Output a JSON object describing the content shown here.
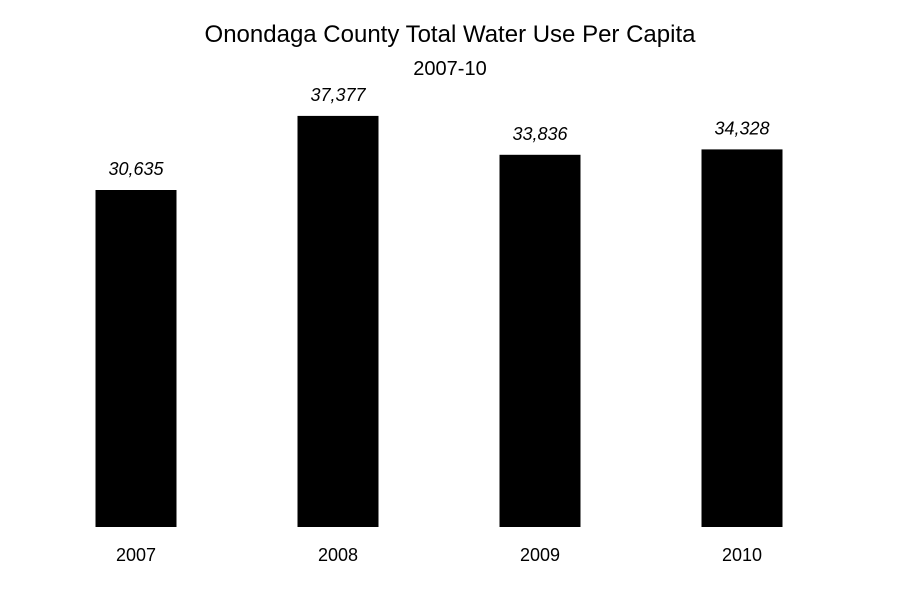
{
  "chart_data": {
    "type": "bar",
    "title": "Onondaga County Total Water Use Per Capita",
    "subtitle": "2007-10",
    "xlabel": "",
    "ylabel": "",
    "categories": [
      "2007",
      "2008",
      "2009",
      "2010"
    ],
    "values": [
      30635,
      37377,
      33836,
      34328
    ],
    "value_labels": [
      "30,635",
      "37,377",
      "33,836",
      "34,328"
    ],
    "ylim": [
      0,
      41000
    ],
    "grid": false,
    "legend": "none",
    "bar_color": "#000000"
  }
}
